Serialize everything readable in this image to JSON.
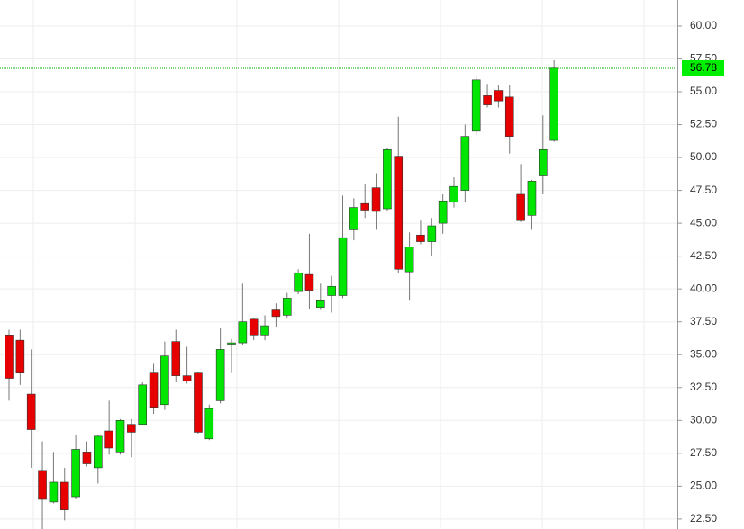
{
  "chart_data": {
    "type": "candlestick",
    "open": [
      36.5,
      36.1,
      32.0,
      26.2,
      23.8,
      25.3,
      24.2,
      27.6,
      26.4,
      29.2,
      27.6,
      29.7,
      29.7,
      33.6,
      31.2,
      36.0,
      33.4,
      33.6,
      28.6,
      31.5,
      35.8,
      35.9,
      37.7,
      36.5,
      38.4,
      38.0,
      39.8,
      41.1,
      38.6,
      39.5,
      39.5,
      44.5,
      46.5,
      47.7,
      46.1,
      50.1,
      41.3,
      44.1,
      43.6,
      45.0,
      46.6,
      47.5,
      52.0,
      54.7,
      55.1,
      54.6,
      47.2,
      45.6,
      48.6,
      51.3
    ],
    "high": [
      36.9,
      36.9,
      35.4,
      28.4,
      27.6,
      26.4,
      28.9,
      28.4,
      28.9,
      31.5,
      30.1,
      30.1,
      32.9,
      34.3,
      36.0,
      36.9,
      35.6,
      33.7,
      31.2,
      37.0,
      36.2,
      40.4,
      37.8,
      38.0,
      38.9,
      39.7,
      41.5,
      44.2,
      40.4,
      41.0,
      47.1,
      46.9,
      48.0,
      48.8,
      50.7,
      53.1,
      44.3,
      45.2,
      45.4,
      47.2,
      48.5,
      52.5,
      56.2,
      55.6,
      55.5,
      55.5,
      49.5,
      48.3,
      53.2,
      57.4
    ],
    "low": [
      31.5,
      32.7,
      26.4,
      21.7,
      23.7,
      22.4,
      24.0,
      26.5,
      25.2,
      27.4,
      27.4,
      27.2,
      29.7,
      30.5,
      30.8,
      32.9,
      32.8,
      29.0,
      28.5,
      31.3,
      33.6,
      35.7,
      36.1,
      36.1,
      37.1,
      37.8,
      39.6,
      38.5,
      38.4,
      38.2,
      39.3,
      43.7,
      45.4,
      44.5,
      45.9,
      41.2,
      39.1,
      43.4,
      42.5,
      44.2,
      46.2,
      46.6,
      51.7,
      53.8,
      53.8,
      50.3,
      45.1,
      44.5,
      47.2,
      51.2
    ],
    "close": [
      33.2,
      33.6,
      29.3,
      24.0,
      25.3,
      23.2,
      27.8,
      26.7,
      28.8,
      27.9,
      30.0,
      29.1,
      32.7,
      31.0,
      34.9,
      33.4,
      33.0,
      29.1,
      30.9,
      35.4,
      35.9,
      37.5,
      36.5,
      37.2,
      37.9,
      39.3,
      41.2,
      39.9,
      39.1,
      40.2,
      43.9,
      46.2,
      46.0,
      45.9,
      50.6,
      41.5,
      43.2,
      43.6,
      44.8,
      46.7,
      47.8,
      51.6,
      55.9,
      54.0,
      54.3,
      51.6,
      45.2,
      48.2,
      50.6,
      56.8
    ],
    "up_color": "#00e600",
    "down_color": "#e60000",
    "ylim": [
      21.74,
      61.98
    ],
    "yticks": [
      {
        "value": 22.5,
        "label": "22.50"
      },
      {
        "value": 25,
        "label": "25.00"
      },
      {
        "value": 27.5,
        "label": "27.50"
      },
      {
        "value": 30,
        "label": "30.00"
      },
      {
        "value": 32.5,
        "label": "32.50"
      },
      {
        "value": 35,
        "label": "35.00"
      },
      {
        "value": 37.5,
        "label": "37.50"
      },
      {
        "value": 40,
        "label": "40.00"
      },
      {
        "value": 42.5,
        "label": "42.50"
      },
      {
        "value": 45,
        "label": "45.00"
      },
      {
        "value": 47.5,
        "label": "47.50"
      },
      {
        "value": 50,
        "label": "50.00"
      },
      {
        "value": 52.5,
        "label": "52.50"
      },
      {
        "value": 55,
        "label": "55.00"
      },
      {
        "value": 57.5,
        "label": "57.50"
      },
      {
        "value": 60,
        "label": "60.00"
      }
    ],
    "last_price": 56.78,
    "last_price_color": "#00ee00",
    "grid": true
  }
}
